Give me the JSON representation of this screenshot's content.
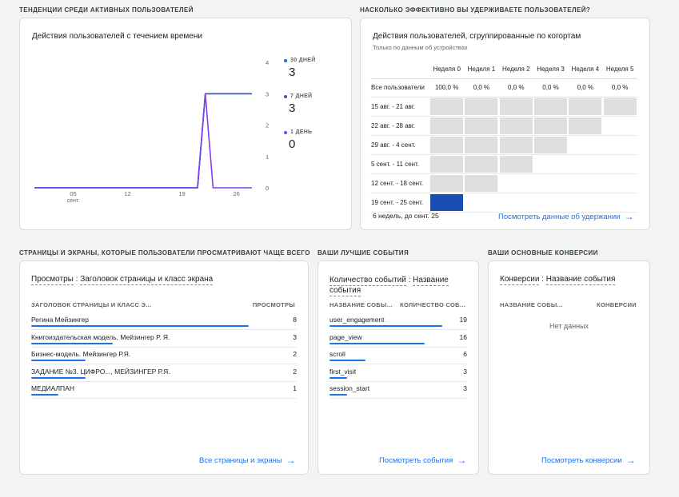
{
  "sections": {
    "active_trends": "ТЕНДЕНЦИИ СРЕДИ АКТИВНЫХ ПОЛЬЗОВАТЕЛЕЙ",
    "retention": "НАСКОЛЬКО ЭФФЕКТИВНО ВЫ УДЕРЖИВАЕТЕ ПОЛЬЗОВАТЕЛЕЙ?",
    "pages": "СТРАНИЦЫ И ЭКРАНЫ, КОТОРЫЕ ПОЛЬЗОВАТЕЛИ ПРОСМАТРИВАЮТ ЧАЩЕ ВСЕГО",
    "events": "ВАШИ ЛУЧШИЕ СОБЫТИЯ",
    "conversions": "ВАШИ ОСНОВНЫЕ КОНВЕРСИИ"
  },
  "active_users": {
    "card_title": "Действия пользователей с течением времени",
    "legend": [
      {
        "label": "30 ДНЕЙ",
        "value": "3",
        "color": "#1a73e8"
      },
      {
        "label": "7 ДНЕЙ",
        "value": "3",
        "color": "#3f51b5"
      },
      {
        "label": "1 ДЕНЬ",
        "value": "0",
        "color": "#7e3ff2"
      }
    ]
  },
  "chart_data": {
    "type": "line",
    "x_tick_labels": [
      "05",
      "12",
      "19",
      "26"
    ],
    "x_tick_sublabel": "сент.",
    "y_ticks": [
      0,
      1,
      2,
      3,
      4
    ],
    "ylim": [
      0,
      4
    ],
    "y_axis_position": "right",
    "days": [
      0,
      1,
      2,
      3,
      4,
      5,
      6,
      7,
      8,
      9,
      10,
      11,
      12,
      13,
      14,
      15,
      16,
      17,
      18,
      19,
      20,
      21,
      22,
      23,
      24,
      25,
      26,
      27,
      28
    ],
    "series": [
      {
        "color": "#1a73e8",
        "values": [
          0,
          0,
          0,
          0,
          0,
          0,
          0,
          0,
          0,
          0,
          0,
          0,
          0,
          0,
          0,
          0,
          0,
          0,
          0,
          0,
          0,
          0,
          3,
          3,
          3,
          3,
          3,
          3,
          3
        ]
      },
      {
        "color": "#3f51b5",
        "values": [
          0,
          0,
          0,
          0,
          0,
          0,
          0,
          0,
          0,
          0,
          0,
          0,
          0,
          0,
          0,
          0,
          0,
          0,
          0,
          0,
          0,
          0,
          3,
          3,
          3,
          3,
          3,
          3,
          3
        ]
      },
      {
        "color": "#7e3ff2",
        "values": [
          0,
          0,
          0,
          0,
          0,
          0,
          0,
          0,
          0,
          0,
          0,
          0,
          0,
          0,
          0,
          0,
          0,
          0,
          0,
          0,
          0,
          0,
          3,
          0,
          0,
          0,
          0,
          0,
          0
        ]
      }
    ]
  },
  "retention": {
    "card_title": "Действия пользователей, сгруппированные по когортам",
    "subtitle": "Только по данным об устройствах",
    "weeks": [
      "Неделя 0",
      "Неделя 1",
      "Неделя 2",
      "Неделя 3",
      "Неделя 4",
      "Неделя 5"
    ],
    "all_users_label": "Все пользователи",
    "all_users_values": [
      "100,0 %",
      "0,0 %",
      "0,0 %",
      "0,0 %",
      "0,0 %",
      "0,0 %"
    ],
    "cohorts": [
      {
        "label": "15 авг. - 21 авг.",
        "weeks": 6,
        "highlight": 0
      },
      {
        "label": "22 авг. - 28 авг.",
        "weeks": 5,
        "highlight": 0
      },
      {
        "label": "29 авг. - 4 сент.",
        "weeks": 4,
        "highlight": 0
      },
      {
        "label": "5 сент. - 11 сент.",
        "weeks": 3,
        "highlight": 0
      },
      {
        "label": "12 сент. - 18 сент.",
        "weeks": 2,
        "highlight": 0
      },
      {
        "label": "19 сент. - 25 сент.",
        "weeks": 1,
        "highlight": 1
      }
    ],
    "footer_text": "6 недель, до сент. 25",
    "link": "Посмотреть данные об удержании"
  },
  "pages": {
    "card_title_metric": "Просмотры",
    "card_title_dim": "Заголовок страницы и класс экрана",
    "col_name": "ЗАГОЛОВОК СТРАНИЦЫ И КЛАСС Э...",
    "col_value": "ПРОСМОТРЫ",
    "rows": [
      {
        "name": "Регина Мейзингер",
        "value": "8",
        "share": 1.0
      },
      {
        "name": "Книгоиздательская модель, Мейзингер Р. Я.",
        "value": "3",
        "share": 0.375
      },
      {
        "name": "Бизнес-модель. Мейзингер Р.Я.",
        "value": "2",
        "share": 0.25
      },
      {
        "name": "ЗАДАНИЕ №3. ЦИФРО..., МЕЙЗИНГЕР Р.Я.",
        "value": "2",
        "share": 0.25
      },
      {
        "name": "МЕДИАЛПАН",
        "value": "1",
        "share": 0.125
      }
    ],
    "link": "Все страницы и экраны"
  },
  "events": {
    "card_title_metric": "Количество событий",
    "card_title_dim": "Название события",
    "col_name": "НАЗВАНИЕ СОБЫ...",
    "col_value": "КОЛИЧЕСТВО СОБ...",
    "rows": [
      {
        "name": "user_engagement",
        "value": "19",
        "share": 1.0
      },
      {
        "name": "page_view",
        "value": "16",
        "share": 0.842
      },
      {
        "name": "scroll",
        "value": "6",
        "share": 0.316
      },
      {
        "name": "first_visit",
        "value": "3",
        "share": 0.158
      },
      {
        "name": "session_start",
        "value": "3",
        "share": 0.158
      }
    ],
    "link": "Посмотреть события"
  },
  "conversions": {
    "card_title_metric": "Конверсии",
    "card_title_dim": "Название события",
    "col_name": "НАЗВАНИЕ СОБЫ...",
    "col_value": "КОНВЕРСИИ",
    "no_data": "Нет данных",
    "link": "Посмотреть конверсии"
  }
}
